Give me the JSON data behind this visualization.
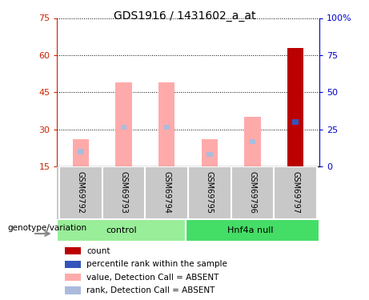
{
  "title": "GDS1916 / 1431602_a_at",
  "samples": [
    "GSM69792",
    "GSM69793",
    "GSM69794",
    "GSM69795",
    "GSM69796",
    "GSM69797"
  ],
  "ylim_left": [
    15,
    75
  ],
  "ylim_right": [
    0,
    100
  ],
  "yticks_left": [
    15,
    30,
    45,
    60,
    75
  ],
  "yticks_right": [
    0,
    25,
    50,
    75,
    100
  ],
  "ytick_labels_right": [
    "0",
    "25",
    "50",
    "75",
    "100%"
  ],
  "pink_bar_tops": [
    26,
    49,
    49,
    26,
    35,
    63
  ],
  "pink_bar_bottoms": [
    15,
    15,
    15,
    15,
    15,
    15
  ],
  "blue_bar_tops": [
    22,
    32,
    32,
    21,
    26,
    34
  ],
  "blue_bar_bottoms": [
    20,
    30,
    30,
    19,
    24,
    32
  ],
  "red_bar_sample_index": 5,
  "pink_color": "#FFAAAA",
  "blue_bar_color": "#AABBDD",
  "blue_bar_last_color": "#3355BB",
  "red_color": "#BB0000",
  "control_color": "#99EE99",
  "hnf4a_color": "#44DD66",
  "left_tick_color": "#CC2200",
  "right_tick_color": "#0000CC",
  "genotype_label": "genotype/variation",
  "legend_colors": [
    "#BB0000",
    "#3355BB",
    "#FFAAAA",
    "#AABBDD"
  ],
  "legend_labels": [
    "count",
    "percentile rank within the sample",
    "value, Detection Call = ABSENT",
    "rank, Detection Call = ABSENT"
  ]
}
